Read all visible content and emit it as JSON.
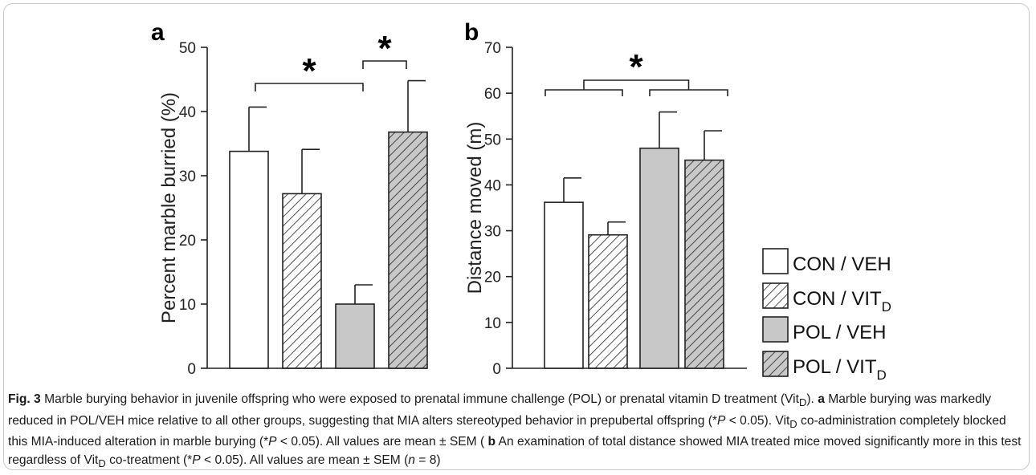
{
  "chart_data": [
    {
      "type": "bar",
      "panel_label": "a",
      "ylabel": "Percent marble burried (%)",
      "ylim": [
        0,
        50
      ],
      "yticks": [
        0,
        10,
        20,
        30,
        40,
        50
      ],
      "categories": [
        "CON/VEH",
        "CON/VIT_D",
        "POL/VEH",
        "POL/VIT_D"
      ],
      "values": [
        33.8,
        27.2,
        10.0,
        36.8
      ],
      "sem": [
        6.9,
        6.9,
        3.0,
        8.0
      ],
      "significance": [
        {
          "label": "*",
          "from": [
            "CON/VEH",
            "CON/VIT_D"
          ],
          "to": "POL/VEH"
        },
        {
          "label": "*",
          "from": [
            "POL/VEH"
          ],
          "to": "POL/VIT_D"
        }
      ]
    },
    {
      "type": "bar",
      "panel_label": "b",
      "ylabel": "Distance moved (m)",
      "ylim": [
        0,
        70
      ],
      "yticks": [
        0,
        10,
        20,
        30,
        40,
        50,
        60,
        70
      ],
      "categories": [
        "CON/VEH",
        "CON/VIT_D",
        "POL/VEH",
        "POL/VIT_D"
      ],
      "values": [
        36.2,
        29.1,
        48.0,
        45.4
      ],
      "sem": [
        5.3,
        2.8,
        7.9,
        6.4
      ],
      "significance": [
        {
          "label": "*",
          "from": [
            "CON/VEH",
            "CON/VIT_D"
          ],
          "to": [
            "POL/VEH",
            "POL/VIT_D"
          ]
        }
      ]
    }
  ],
  "legend": {
    "items": [
      {
        "main": "CON / VEH",
        "sub": "",
        "fill": "#ffffff",
        "hatch": false
      },
      {
        "main": "CON / VIT",
        "sub": "D",
        "fill": "#ffffff",
        "hatch": true
      },
      {
        "main": "POL / VEH",
        "sub": "",
        "fill": "#c8c8c8",
        "hatch": false
      },
      {
        "main": "POL / VIT",
        "sub": "D",
        "fill": "#c8c8c8",
        "hatch": true
      }
    ]
  },
  "caption": {
    "fig_label": "Fig. 3",
    "title_a": "Marble burying behavior in juvenile offspring who were exposed to prenatal immune challenge (POL) or prenatal vitamin D treatment (Vit",
    "sub_d": "D",
    "title_b": ").",
    "a_label": "a",
    "a_text_1": "Marble burying was markedly reduced in POL/VEH mice relative to all other groups, suggesting that MIA alters stereotyped behavior in prepubertal offspring (*",
    "p_symbol": "P",
    "p_text": " < 0.05). Vit",
    "a_text_2": " co-administration completely blocked this MIA-induced alteration in marble burying (*",
    "b_label": "b",
    "b_text_1": "An examination of total distance showed MIA treated mice moved significantly more in this test regardless of Vit",
    "b_text_2": " co-treatment (*",
    "end_text_1": " < 0.05). All values are mean ± SEM (",
    "n_symbol": "n",
    "end_text_2": " = 8)"
  },
  "colors": {
    "pol_fill": "#c8c8c8",
    "con_fill": "#ffffff",
    "ink": "#222222"
  }
}
